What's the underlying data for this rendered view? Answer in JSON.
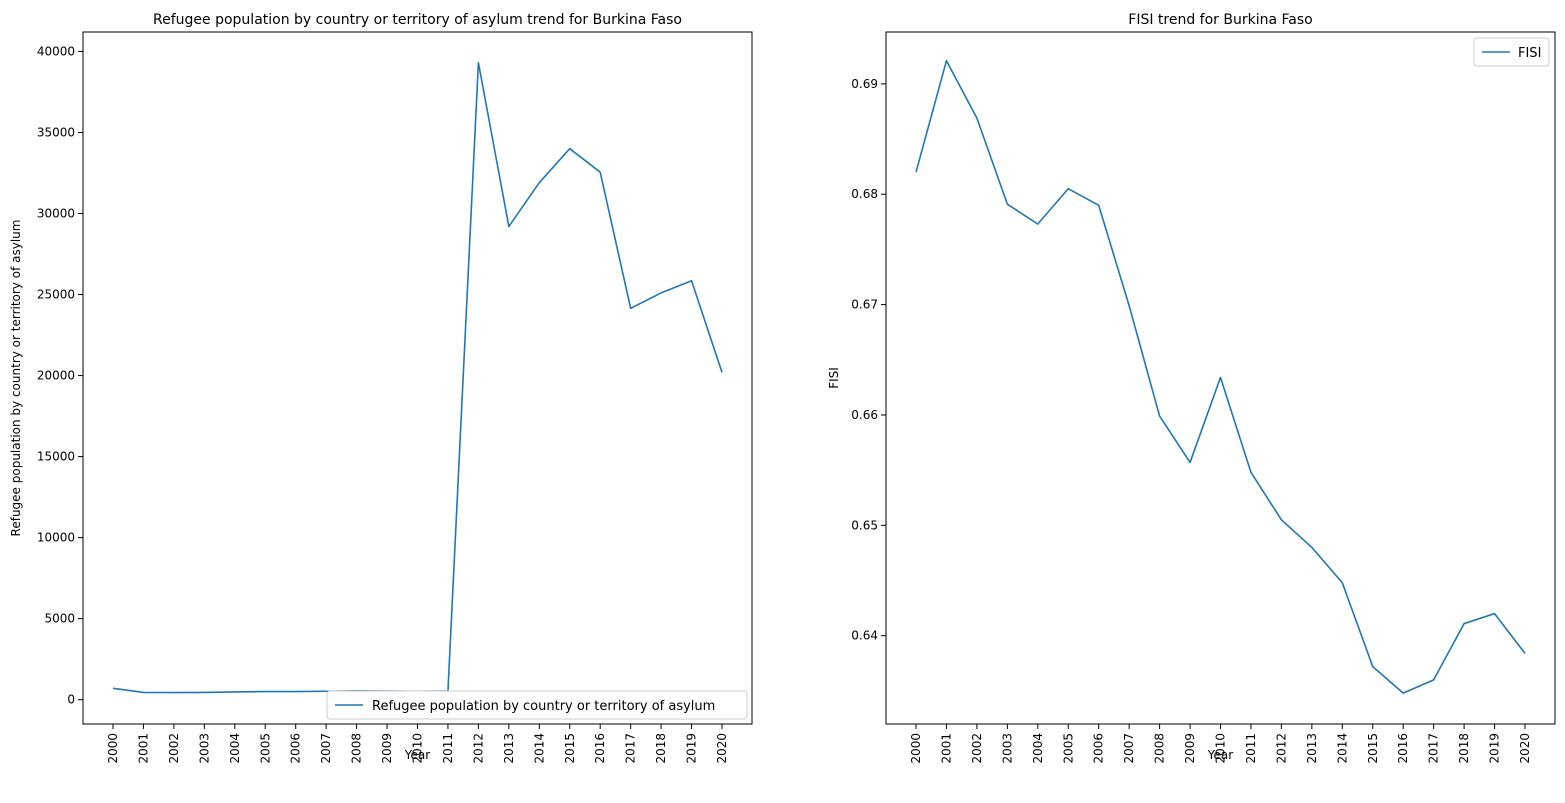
{
  "chart_data": [
    {
      "type": "line",
      "title": "Refugee population by country or territory of asylum trend for Burkina Faso",
      "xlabel": "Year",
      "ylabel": "Refugee population by country or territory of asylum",
      "x": [
        "2000",
        "2001",
        "2002",
        "2003",
        "2004",
        "2005",
        "2006",
        "2007",
        "2008",
        "2009",
        "2010",
        "2011",
        "2012",
        "2013",
        "2014",
        "2015",
        "2016",
        "2017",
        "2018",
        "2019",
        "2020"
      ],
      "yticks": [
        "0",
        "5000",
        "10000",
        "15000",
        "20000",
        "25000",
        "30000",
        "35000",
        "40000"
      ],
      "ylim": [
        -1500,
        41200
      ],
      "grid": false,
      "legend_position": "lower-right",
      "series": [
        {
          "name": "Refugee population by country or territory of asylum",
          "values": [
            700,
            450,
            440,
            450,
            480,
            500,
            500,
            520,
            550,
            530,
            520,
            540,
            39300,
            29200,
            31900,
            34000,
            32550,
            24150,
            25100,
            25850,
            20200
          ]
        }
      ],
      "color": "#1f77b4"
    },
    {
      "type": "line",
      "title": "FISI trend for Burkina Faso",
      "xlabel": "Year",
      "ylabel": "FISI",
      "x": [
        "2000",
        "2001",
        "2002",
        "2003",
        "2004",
        "2005",
        "2006",
        "2007",
        "2008",
        "2009",
        "2010",
        "2011",
        "2012",
        "2013",
        "2014",
        "2015",
        "2016",
        "2017",
        "2018",
        "2019",
        "2020"
      ],
      "yticks": [
        "0.64",
        "0.65",
        "0.66",
        "0.67",
        "0.68",
        "0.69"
      ],
      "ylim": [
        0.632,
        0.6947
      ],
      "grid": false,
      "legend_position": "upper-right",
      "series": [
        {
          "name": "FISI",
          "values": [
            0.682,
            0.6921,
            0.6869,
            0.6791,
            0.6773,
            0.6805,
            0.679,
            0.6699,
            0.6599,
            0.6557,
            0.6634,
            0.6548,
            0.6505,
            0.648,
            0.6448,
            0.6372,
            0.6348,
            0.636,
            0.6411,
            0.642,
            0.6384
          ]
        }
      ],
      "color": "#1f77b4"
    }
  ]
}
